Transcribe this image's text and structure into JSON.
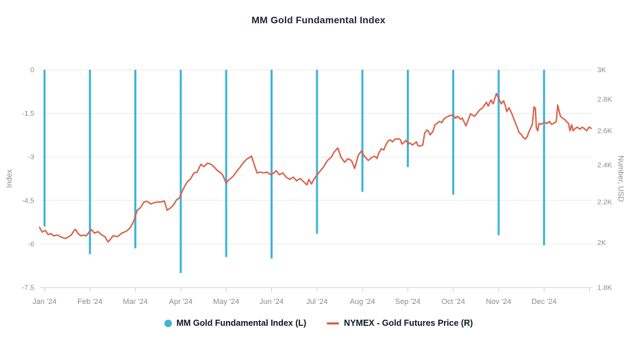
{
  "title": "MM Gold Fundamental Index",
  "legend": {
    "items": [
      {
        "label": "MM Gold Fundamental Index (L)",
        "marker": "circle",
        "color": "#3db4d8"
      },
      {
        "label": "NYMEX - Gold Futures Price (R)",
        "marker": "line",
        "color": "#d95c44"
      }
    ]
  },
  "left_axis": {
    "name": "Index",
    "max": 0,
    "min": -7.5,
    "tick_labels": [
      "0",
      "-1.5",
      "-3",
      "-4.5",
      "-6",
      "-7.5"
    ],
    "tick_values": [
      0,
      -1.5,
      -3,
      -4.5,
      -6,
      -7.5
    ]
  },
  "right_axis": {
    "name": "Number, USD",
    "max": 3000,
    "min": 1800,
    "scale": "log",
    "tick_labels": [
      "3K",
      "2.8K",
      "2.6K",
      "2.4K",
      "2.2K",
      "2K",
      "1.8K"
    ],
    "tick_values": [
      3000,
      2800,
      2600,
      2400,
      2200,
      2000,
      1800
    ]
  },
  "x_axis": {
    "labels": [
      "Jan '24",
      "Feb '24",
      "Mar '24",
      "Apr '24",
      "May '24",
      "Jun '24",
      "Jul '24",
      "Aug '24",
      "Sep '24",
      "Oct '24",
      "Nov '24",
      "Dec '24"
    ]
  },
  "colors": {
    "grid": "#e9e9e9",
    "axis_line": "#cfcfcf",
    "tick_text": "#8b8b8b",
    "title_text": "#1a2332",
    "legend_text": "#0d1726",
    "bar": "#3db4d8",
    "line": "#d95c44",
    "background": "#ffffff"
  },
  "chart_data": {
    "type": "bar",
    "note": "combo chart: monthly bars on left axis (Index), daily line on right log axis (USD)",
    "categories": [
      "Jan '24",
      "Feb '24",
      "Mar '24",
      "Apr '24",
      "May '24",
      "Jun '24",
      "Jul '24",
      "Aug '24",
      "Sep '24",
      "Oct '24",
      "Nov '24",
      "Dec '24"
    ],
    "x_unit": "months since Jan '24 tick (fractional = position within year)",
    "series": [
      {
        "name": "MM Gold Fundamental Index (L)",
        "type": "bar",
        "y_axis": "left",
        "values": [
          -5.4,
          -6.35,
          -6.15,
          -7.0,
          -6.45,
          -6.5,
          -5.65,
          -4.2,
          -3.35,
          -4.3,
          -5.7,
          -6.05
        ]
      },
      {
        "name": "NYMEX - Gold Futures Price (R)",
        "type": "line",
        "y_axis": "right",
        "points": [
          [
            -0.11,
            2073
          ],
          [
            -0.05,
            2050
          ],
          [
            0.02,
            2058
          ],
          [
            0.08,
            2038
          ],
          [
            0.14,
            2043
          ],
          [
            0.2,
            2032
          ],
          [
            0.29,
            2036
          ],
          [
            0.35,
            2028
          ],
          [
            0.41,
            2022
          ],
          [
            0.47,
            2020
          ],
          [
            0.53,
            2028
          ],
          [
            0.59,
            2036
          ],
          [
            0.65,
            2058
          ],
          [
            0.68,
            2063
          ],
          [
            0.74,
            2043
          ],
          [
            0.8,
            2032
          ],
          [
            0.86,
            2036
          ],
          [
            0.92,
            2032
          ],
          [
            0.98,
            2050
          ],
          [
            1.03,
            2062
          ],
          [
            1.1,
            2045
          ],
          [
            1.18,
            2052
          ],
          [
            1.25,
            2038
          ],
          [
            1.33,
            2028
          ],
          [
            1.4,
            2003
          ],
          [
            1.45,
            2015
          ],
          [
            1.51,
            2033
          ],
          [
            1.61,
            2028
          ],
          [
            1.7,
            2045
          ],
          [
            1.81,
            2055
          ],
          [
            1.89,
            2072
          ],
          [
            1.96,
            2100
          ],
          [
            2.04,
            2158
          ],
          [
            2.11,
            2170
          ],
          [
            2.19,
            2200
          ],
          [
            2.26,
            2203
          ],
          [
            2.34,
            2190
          ],
          [
            2.41,
            2196
          ],
          [
            2.49,
            2200
          ],
          [
            2.56,
            2200
          ],
          [
            2.64,
            2205
          ],
          [
            2.7,
            2158
          ],
          [
            2.78,
            2170
          ],
          [
            2.84,
            2185
          ],
          [
            2.91,
            2212
          ],
          [
            2.97,
            2220
          ],
          [
            3.03,
            2255
          ],
          [
            3.09,
            2285
          ],
          [
            3.15,
            2308
          ],
          [
            3.21,
            2320
          ],
          [
            3.29,
            2355
          ],
          [
            3.36,
            2360
          ],
          [
            3.44,
            2403
          ],
          [
            3.51,
            2390
          ],
          [
            3.59,
            2410
          ],
          [
            3.67,
            2403
          ],
          [
            3.73,
            2390
          ],
          [
            3.8,
            2370
          ],
          [
            3.86,
            2360
          ],
          [
            3.92,
            2345
          ],
          [
            4.0,
            2300
          ],
          [
            4.07,
            2320
          ],
          [
            4.15,
            2335
          ],
          [
            4.22,
            2360
          ],
          [
            4.3,
            2385
          ],
          [
            4.37,
            2410
          ],
          [
            4.45,
            2432
          ],
          [
            4.56,
            2450
          ],
          [
            4.6,
            2415
          ],
          [
            4.68,
            2355
          ],
          [
            4.75,
            2360
          ],
          [
            4.83,
            2355
          ],
          [
            4.9,
            2360
          ],
          [
            4.98,
            2345
          ],
          [
            5.05,
            2355
          ],
          [
            5.1,
            2368
          ],
          [
            5.17,
            2345
          ],
          [
            5.25,
            2355
          ],
          [
            5.32,
            2332
          ],
          [
            5.4,
            2320
          ],
          [
            5.48,
            2332
          ],
          [
            5.55,
            2312
          ],
          [
            5.63,
            2325
          ],
          [
            5.7,
            2308
          ],
          [
            5.78,
            2290
          ],
          [
            5.82,
            2320
          ],
          [
            5.88,
            2295
          ],
          [
            5.93,
            2320
          ],
          [
            5.96,
            2330
          ],
          [
            6.05,
            2360
          ],
          [
            6.15,
            2390
          ],
          [
            6.23,
            2425
          ],
          [
            6.31,
            2443
          ],
          [
            6.38,
            2475
          ],
          [
            6.46,
            2497
          ],
          [
            6.53,
            2443
          ],
          [
            6.61,
            2415
          ],
          [
            6.68,
            2435
          ],
          [
            6.76,
            2425
          ],
          [
            6.83,
            2380
          ],
          [
            6.91,
            2455
          ],
          [
            6.98,
            2480
          ],
          [
            7.04,
            2450
          ],
          [
            7.13,
            2425
          ],
          [
            7.21,
            2443
          ],
          [
            7.27,
            2450
          ],
          [
            7.32,
            2436
          ],
          [
            7.36,
            2468
          ],
          [
            7.42,
            2493
          ],
          [
            7.47,
            2485
          ],
          [
            7.51,
            2512
          ],
          [
            7.57,
            2540
          ],
          [
            7.62,
            2545
          ],
          [
            7.66,
            2533
          ],
          [
            7.72,
            2550
          ],
          [
            7.8,
            2552
          ],
          [
            7.84,
            2545
          ],
          [
            7.87,
            2520
          ],
          [
            7.92,
            2532
          ],
          [
            7.96,
            2542
          ],
          [
            8.01,
            2520
          ],
          [
            8.04,
            2528
          ],
          [
            8.1,
            2515
          ],
          [
            8.15,
            2525
          ],
          [
            8.19,
            2533
          ],
          [
            8.22,
            2512
          ],
          [
            8.27,
            2508
          ],
          [
            8.33,
            2515
          ],
          [
            8.37,
            2585
          ],
          [
            8.42,
            2605
          ],
          [
            8.45,
            2600
          ],
          [
            8.49,
            2575
          ],
          [
            8.55,
            2595
          ],
          [
            8.6,
            2638
          ],
          [
            8.64,
            2645
          ],
          [
            8.7,
            2658
          ],
          [
            8.75,
            2650
          ],
          [
            8.79,
            2672
          ],
          [
            8.85,
            2685
          ],
          [
            8.93,
            2695
          ],
          [
            9.0,
            2698
          ],
          [
            9.05,
            2678
          ],
          [
            9.1,
            2690
          ],
          [
            9.16,
            2672
          ],
          [
            9.2,
            2678
          ],
          [
            9.28,
            2630
          ],
          [
            9.38,
            2705
          ],
          [
            9.47,
            2690
          ],
          [
            9.58,
            2730
          ],
          [
            9.65,
            2745
          ],
          [
            9.73,
            2780
          ],
          [
            9.77,
            2755
          ],
          [
            9.83,
            2795
          ],
          [
            9.88,
            2770
          ],
          [
            9.95,
            2838
          ],
          [
            10.0,
            2805
          ],
          [
            10.06,
            2770
          ],
          [
            10.11,
            2790
          ],
          [
            10.14,
            2765
          ],
          [
            10.18,
            2720
          ],
          [
            10.23,
            2745
          ],
          [
            10.3,
            2700
          ],
          [
            10.35,
            2662
          ],
          [
            10.41,
            2620
          ],
          [
            10.45,
            2590
          ],
          [
            10.5,
            2578
          ],
          [
            10.54,
            2560
          ],
          [
            10.59,
            2550
          ],
          [
            10.63,
            2565
          ],
          [
            10.66,
            2590
          ],
          [
            10.71,
            2620
          ],
          [
            10.74,
            2638
          ],
          [
            10.78,
            2750
          ],
          [
            10.81,
            2740
          ],
          [
            10.83,
            2620
          ],
          [
            10.86,
            2600
          ],
          [
            10.89,
            2645
          ],
          [
            10.93,
            2640
          ],
          [
            10.96,
            2645
          ],
          [
            11.01,
            2652
          ],
          [
            11.06,
            2645
          ],
          [
            11.12,
            2658
          ],
          [
            11.16,
            2640
          ],
          [
            11.21,
            2645
          ],
          [
            11.27,
            2658
          ],
          [
            11.3,
            2762
          ],
          [
            11.36,
            2690
          ],
          [
            11.42,
            2676
          ],
          [
            11.46,
            2668
          ],
          [
            11.49,
            2658
          ],
          [
            11.54,
            2645
          ],
          [
            11.57,
            2600
          ],
          [
            11.61,
            2638
          ],
          [
            11.64,
            2600
          ],
          [
            11.69,
            2615
          ],
          [
            11.73,
            2622
          ],
          [
            11.79,
            2610
          ],
          [
            11.84,
            2622
          ],
          [
            11.88,
            2615
          ],
          [
            11.94,
            2600
          ],
          [
            11.99,
            2622
          ],
          [
            12.04,
            2615
          ]
        ]
      }
    ]
  }
}
